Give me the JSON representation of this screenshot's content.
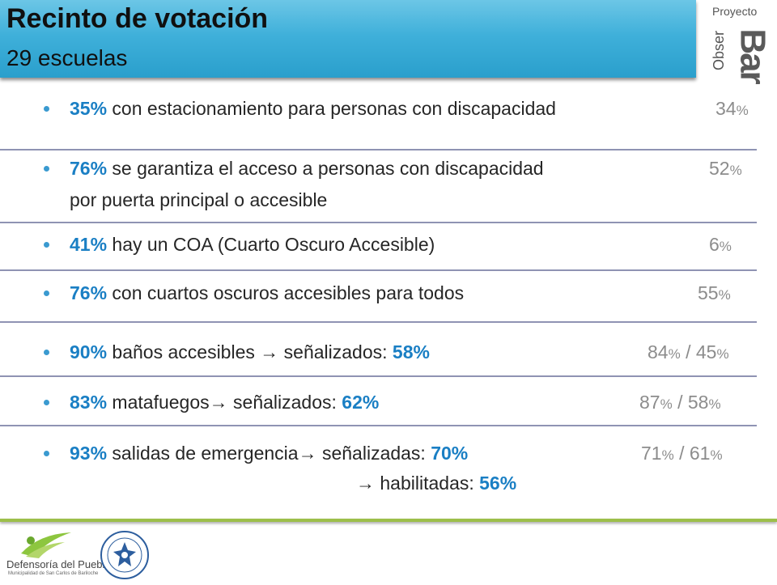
{
  "header": {
    "title": "Recinto de votación",
    "subtitle": "29 escuelas"
  },
  "logo": {
    "proyecto": "Proyecto",
    "obser": "Obser",
    "bar": "Bar"
  },
  "items": [
    {
      "pct": "35%",
      "text": " con estacionamiento para personas con discapacidad",
      "cmp_num": "34",
      "cmp_unit": "%"
    },
    {
      "pct": "76%",
      "text": " se garantiza el acceso a personas con discapacidad",
      "text2": "por puerta principal o accesible",
      "cmp_num": "52",
      "cmp_unit": "%"
    },
    {
      "pct": "41%",
      "text": " hay un COA  (Cuarto Oscuro Accesible)",
      "cmp_num": "6",
      "cmp_unit": "%"
    },
    {
      "pct": "76%",
      "text": " con cuartos oscuros accesibles para todos",
      "cmp_num": "55",
      "cmp_unit": "%"
    },
    {
      "pct": "90%",
      "text": " baños accesibles ",
      "arrow": "→",
      "text_b": " señalizados: ",
      "pct_b": "58%",
      "cmp_num": "84",
      "cmp_unit": "%",
      "cmp_sep": " / ",
      "cmp_num2": "45",
      "cmp_unit2": "%"
    },
    {
      "pct": "83%",
      "text": " matafuegos",
      "arrow": "→",
      "text_b": " señalizados: ",
      "pct_b": "62%",
      "cmp_num": "87",
      "cmp_unit": "%",
      "cmp_sep": " / ",
      "cmp_num2": "58",
      "cmp_unit2": "%"
    },
    {
      "pct": "93%",
      "text": " salidas de emergencia",
      "arrow": "→",
      "text_b": " señalizadas: ",
      "pct_b": "70%",
      "arrow2": "→",
      "text_c": " habilitadas: ",
      "pct_c": "56%",
      "cmp_num": "71",
      "cmp_unit": "%",
      "cmp_sep": " / ",
      "cmp_num2": "61",
      "cmp_unit2": "%"
    }
  ],
  "footer": {
    "defensoria": "Defensoría del Pueblo",
    "defensoria_sub": "Municipalidad de San Carlos de Bariloche"
  }
}
